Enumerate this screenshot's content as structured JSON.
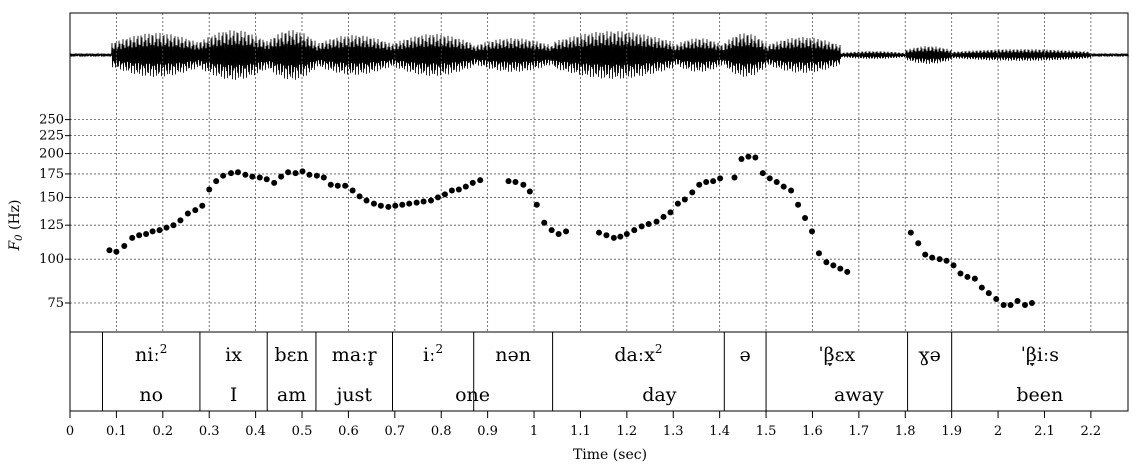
{
  "chart_data": {
    "type": "scatter",
    "ylabel_italic": "F",
    "ylabel_sub": "0",
    "ylabel_rest": " (Hz)",
    "xlabel": "Time (sec)",
    "xlim": [
      0,
      2.28
    ],
    "ylim": [
      62,
      290
    ],
    "y_scale": "log",
    "x_ticks": [
      "0",
      "0.1",
      "0.2",
      "0.3",
      "0.4",
      "0.5",
      "0.6",
      "0.7",
      "0.8",
      "0.9",
      "1",
      "1.1",
      "1.2",
      "1.3",
      "1.4",
      "1.5",
      "1.6",
      "1.7",
      "1.8",
      "1.9",
      "2",
      "2.1",
      "2.2"
    ],
    "x_tick_values": [
      0,
      0.1,
      0.2,
      0.3,
      0.4,
      0.5,
      0.6,
      0.7,
      0.8,
      0.9,
      1,
      1.1,
      1.2,
      1.3,
      1.4,
      1.5,
      1.6,
      1.7,
      1.8,
      1.9,
      2,
      2.1,
      2.2
    ],
    "y_ticks": [
      "75",
      "100",
      "125",
      "150",
      "175",
      "200",
      "225",
      "250"
    ],
    "y_tick_values": [
      75,
      100,
      125,
      150,
      175,
      200,
      225,
      250
    ],
    "grid": true,
    "series": [
      {
        "x": [
          0.085,
          0.1,
          0.117,
          0.134,
          0.149,
          0.164,
          0.178,
          0.193,
          0.208,
          0.223,
          0.238,
          0.254,
          0.27,
          0.285,
          0.3,
          0.315,
          0.33,
          0.347,
          0.362,
          0.378,
          0.393,
          0.409,
          0.424,
          0.44,
          0.455,
          0.47,
          0.486,
          0.501,
          0.516,
          0.532,
          0.547,
          0.562,
          0.577,
          0.593,
          0.609,
          0.624,
          0.639,
          0.655,
          0.67,
          0.686,
          0.701,
          0.716,
          0.731,
          0.747,
          0.762,
          0.778,
          0.793,
          0.808,
          0.823,
          0.838,
          0.853,
          0.868,
          0.884,
          0.945,
          0.96,
          0.977,
          0.991,
          1.006,
          1.022,
          1.038,
          1.053,
          1.069,
          1.14,
          1.156,
          1.172,
          1.186,
          1.2,
          1.216,
          1.232,
          1.247,
          1.264,
          1.279,
          1.294,
          1.31,
          1.325,
          1.341,
          1.356,
          1.371,
          1.386,
          1.401,
          1.432,
          1.447,
          1.462,
          1.477,
          1.493,
          1.508,
          1.523,
          1.538,
          1.554,
          1.569,
          1.584,
          1.599,
          1.614,
          1.63,
          1.645,
          1.66,
          1.675,
          1.812,
          1.828,
          1.843,
          1.858,
          1.874,
          1.889,
          1.904,
          1.919,
          1.934,
          1.95,
          1.965,
          1.98,
          1.996,
          2.012,
          2.027,
          2.042,
          2.058,
          2.073
        ],
        "y": [
          106,
          105,
          109,
          115,
          117,
          118,
          120,
          121,
          123,
          125,
          129,
          135,
          138,
          142,
          158,
          167,
          173,
          176,
          177,
          174,
          172,
          171,
          169,
          165,
          172,
          177,
          176,
          178,
          174,
          173,
          171,
          163,
          162,
          162,
          157,
          151,
          147,
          144,
          142,
          141,
          142,
          143,
          144,
          145,
          146,
          147,
          150,
          153,
          157,
          158,
          161,
          165,
          168,
          167,
          166,
          163,
          156,
          143,
          127,
          121,
          118,
          120,
          119,
          117,
          115,
          116,
          118,
          121,
          124,
          126,
          128,
          132,
          136,
          144,
          148,
          155,
          163,
          166,
          167,
          170,
          171,
          193,
          196,
          195,
          176,
          170,
          166,
          161,
          157,
          143,
          131,
          120,
          104,
          98,
          96,
          94,
          92,
          119,
          111,
          103,
          101,
          100,
          99,
          96,
          91,
          89,
          88,
          83,
          80,
          77,
          74,
          74,
          76,
          74,
          75
        ]
      }
    ]
  },
  "transcription": {
    "segments": [
      {
        "ipa_base": "niː",
        "ipa_sup": "2",
        "gloss": "no"
      },
      {
        "ipa_base": "ix",
        "ipa_sup": "",
        "gloss": "I"
      },
      {
        "ipa_base": "bɛn",
        "ipa_sup": "",
        "gloss": "am"
      },
      {
        "ipa_base": "maːr̥",
        "ipa_sup": "",
        "gloss": "just"
      },
      {
        "ipa_base": "iː",
        "ipa_sup": "2",
        "gloss": "one"
      },
      {
        "ipa_base": "nən",
        "ipa_sup": "",
        "gloss": ""
      },
      {
        "ipa_base": "daːx",
        "ipa_sup": "2",
        "gloss": "day"
      },
      {
        "ipa_base": "ə",
        "ipa_sup": "",
        "gloss": ""
      },
      {
        "ipa_base": "ˈβ̞ɛx",
        "ipa_sup": "",
        "gloss": "away"
      },
      {
        "ipa_base": "ɣə",
        "ipa_sup": "",
        "gloss": ""
      },
      {
        "ipa_base": "ˈβ̞iːs",
        "ipa_sup": "",
        "gloss": "been"
      }
    ],
    "boundaries": [
      0.07,
      0.28,
      0.425,
      0.53,
      0.695,
      0.87,
      1.04,
      1.41,
      1.5,
      1.805,
      1.9,
      2.28
    ],
    "gloss_spans": [
      {
        "from": 0,
        "to": 1,
        "label_index": 0
      },
      {
        "from": 1,
        "to": 2,
        "label_index": 1
      },
      {
        "from": 2,
        "to": 3,
        "label_index": 2
      },
      {
        "from": 3,
        "to": 4,
        "label_index": 3
      },
      {
        "from": 4,
        "to": 6,
        "label_index": 4
      },
      {
        "from": 6,
        "to": 8,
        "label_index": 6
      },
      {
        "from": 8,
        "to": 10,
        "label_index": 8
      },
      {
        "from": 10,
        "to": 11,
        "label_index": 10
      }
    ]
  }
}
